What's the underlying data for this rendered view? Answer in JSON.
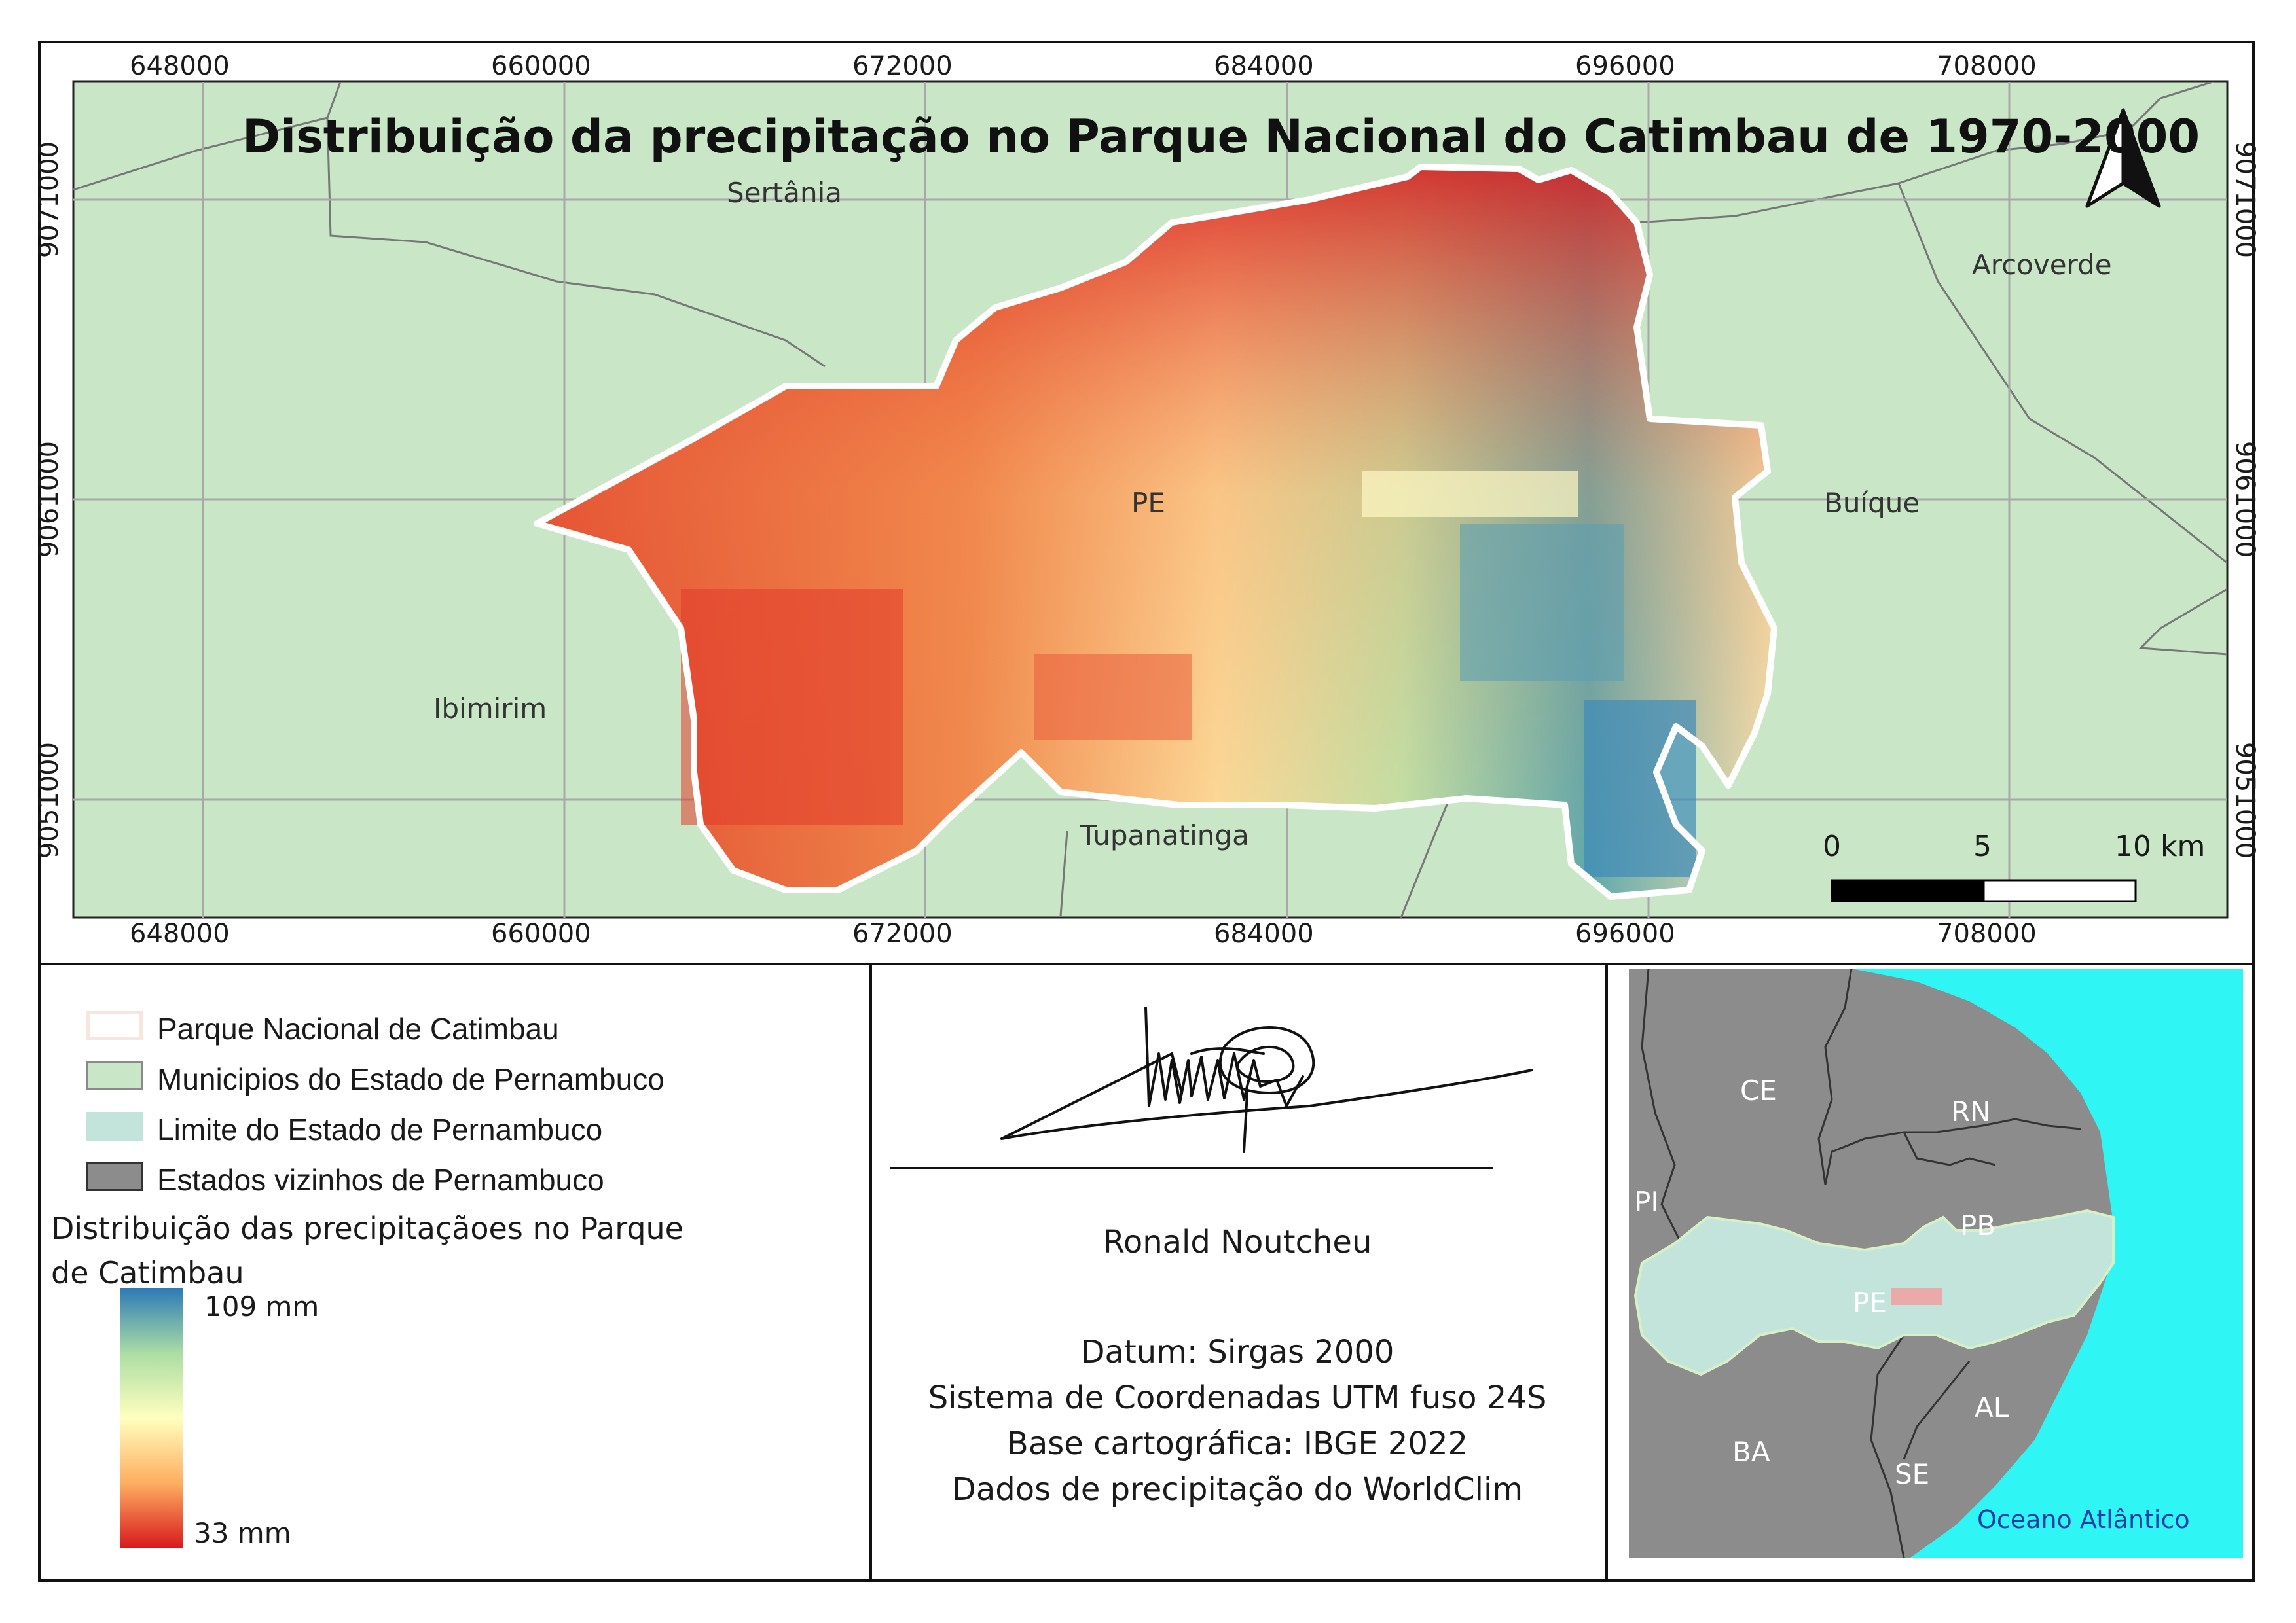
{
  "title": "Distribuição da precipitação no Parque Nacional do Catimbau de 1970-2000",
  "grid": {
    "x_labels": [
      "648000",
      "660000",
      "672000",
      "684000",
      "696000",
      "708000"
    ],
    "y_labels": [
      "9071000",
      "9061000",
      "9051000"
    ]
  },
  "places": {
    "sertania": "Sertânia",
    "arcoverde": "Arcoverde",
    "pe": "PE",
    "buique": "Buíque",
    "ibimirim": "Ibimirim",
    "tupanatinga": "Tupanatinga"
  },
  "scalebar": {
    "labels": [
      "0",
      "5",
      "10 km"
    ]
  },
  "legend": {
    "items": [
      {
        "label": "Parque Nacional de Catimbau",
        "fill": "#ffffff",
        "stroke": "#f5e6e0"
      },
      {
        "label": "Municipios do Estado de Pernambuco",
        "fill": "#c9e6c7",
        "stroke": "#8a8a8a"
      },
      {
        "label": "Limite do Estado de Pernambuco",
        "fill": "#c2e4da",
        "stroke": "#c2e4da"
      },
      {
        "label": "Estados vizinhos de Pernambuco",
        "fill": "#8c8c8c",
        "stroke": "#333333"
      }
    ],
    "ramp_title_line1": "Distribuição das precipitaçãoes no Parque",
    "ramp_title_line2": "de Catimbau",
    "ramp_max": "109 mm",
    "ramp_min": "33 mm",
    "ramp_colors": [
      "#2c7bb6",
      "#abdda4",
      "#ffffbf",
      "#fdae61",
      "#d7191c"
    ]
  },
  "credits": {
    "author": "Ronald Noutcheu",
    "lines": [
      "Datum: Sirgas 2000",
      "Sistema de Coordenadas UTM fuso 24S",
      "Base cartográfica: IBGE 2022",
      "Dados de precipitação do WorldClim"
    ]
  },
  "inset": {
    "states": [
      "CE",
      "RN",
      "PI",
      "PB",
      "PE",
      "AL",
      "BA",
      "SE"
    ],
    "ocean": "Oceano Atlântico"
  },
  "colors": {
    "map_background": "#c9e6c7",
    "ocean": "#2ff5f5",
    "neighbors": "#8c8c8c",
    "pernambuco": "#c2e4da",
    "park_outline": "#ffffff"
  }
}
